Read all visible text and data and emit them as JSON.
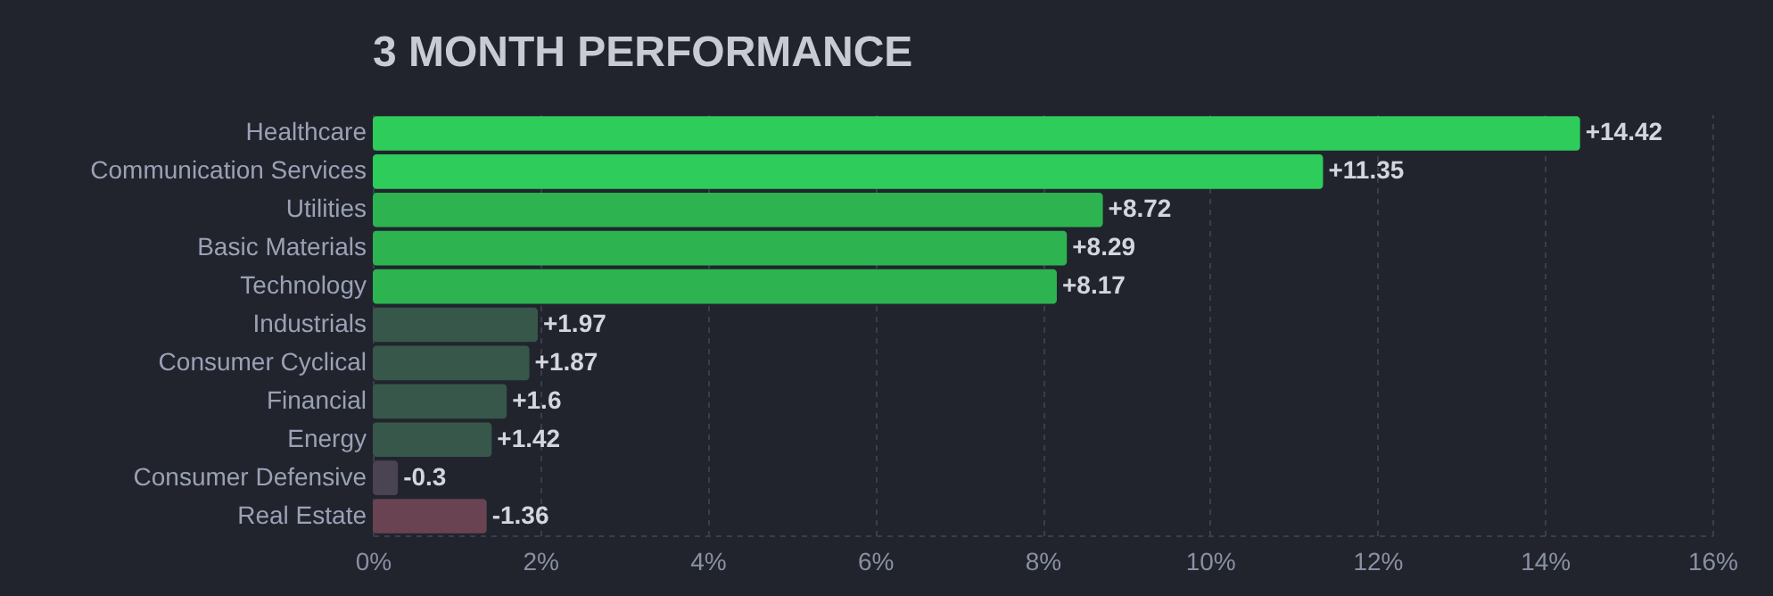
{
  "chart_data": {
    "type": "bar",
    "orientation": "horizontal",
    "title": "3 MONTH PERFORMANCE",
    "categories": [
      "Healthcare",
      "Communication Services",
      "Utilities",
      "Basic Materials",
      "Technology",
      "Industrials",
      "Consumer Cyclical",
      "Financial",
      "Energy",
      "Consumer Defensive",
      "Real Estate"
    ],
    "values": [
      14.42,
      11.35,
      8.72,
      8.29,
      8.17,
      1.97,
      1.87,
      1.6,
      1.42,
      -0.3,
      -1.36
    ],
    "base": [
      0,
      0,
      0,
      0,
      0,
      0,
      0,
      0,
      0,
      0.3,
      1.36
    ],
    "value_labels": [
      "+14.42",
      "+11.35",
      "+8.72",
      "+8.29",
      "+8.17",
      "+1.97",
      "+1.87",
      "+1.6",
      "+1.42",
      "-0.3",
      "-1.36"
    ],
    "colors": [
      "#2ecc5a",
      "#2ecc5a",
      "#2db350",
      "#2db350",
      "#2db350",
      "#36574a",
      "#36574a",
      "#36574a",
      "#36574a",
      "#4a4352",
      "#6a4352"
    ],
    "xlim": [
      0,
      16
    ],
    "xticks": [
      {
        "value": 0,
        "label": "0%"
      },
      {
        "value": 2,
        "label": "2%"
      },
      {
        "value": 4,
        "label": "4%"
      },
      {
        "value": 6,
        "label": "6%"
      },
      {
        "value": 8,
        "label": "8%"
      },
      {
        "value": 10,
        "label": "10%"
      },
      {
        "value": 12,
        "label": "12%"
      },
      {
        "value": 14,
        "label": "14%"
      },
      {
        "value": 16,
        "label": "16%"
      }
    ],
    "grid": "x"
  }
}
